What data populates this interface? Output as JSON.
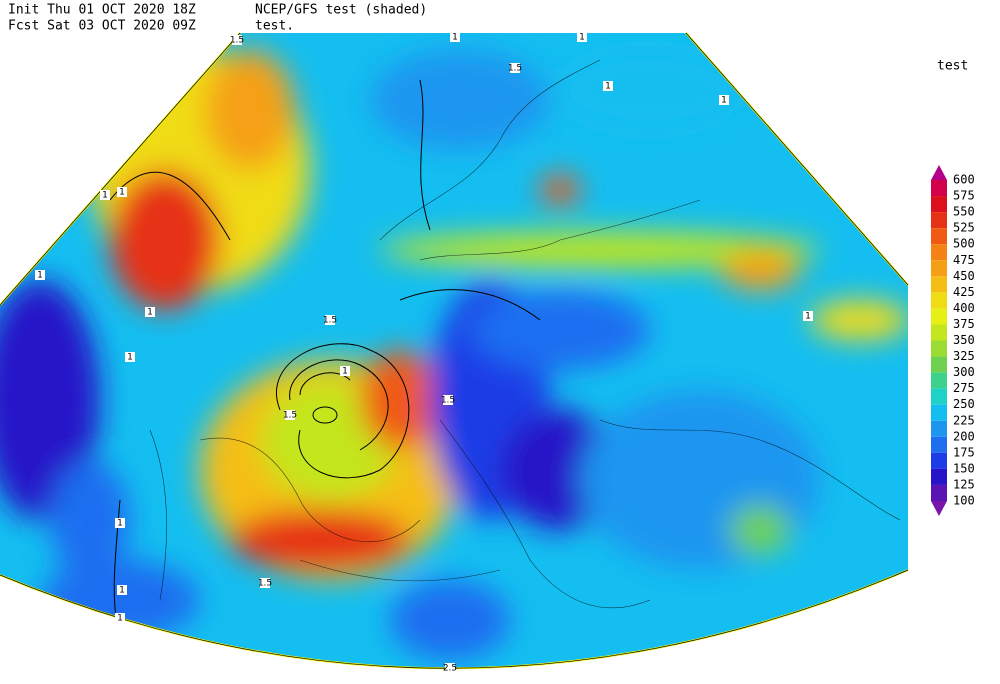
{
  "header": {
    "init": "Init  Thu 01 OCT 2020 18Z",
    "fcst": "Fcst Sat 03 OCT 2020 09Z",
    "product": "NCEP/GFS test (shaded)",
    "variable": "test."
  },
  "legend": {
    "title": "test",
    "levels": [
      600,
      575,
      550,
      525,
      500,
      475,
      450,
      425,
      400,
      375,
      350,
      325,
      300,
      275,
      250,
      225,
      200,
      175,
      150,
      125,
      100
    ],
    "colors": [
      "#b4008c",
      "#d2004b",
      "#dc0f1e",
      "#e63214",
      "#f05a14",
      "#f58214",
      "#f5a014",
      "#f5be14",
      "#f0dc14",
      "#e6f014",
      "#c3e61e",
      "#9bdc32",
      "#6ed250",
      "#3cd28c",
      "#1ed2c8",
      "#14bef0",
      "#1e96f0",
      "#1e6ef0",
      "#1e3ce6",
      "#2814c8",
      "#5a14b4",
      "#7814aa"
    ]
  },
  "contour_labels": [
    "1.5",
    "1",
    "1.5",
    "1",
    "1",
    "1",
    "1",
    "1",
    "1",
    "1",
    "1",
    "1.5",
    "1",
    "1.5",
    "1",
    "1",
    "1",
    "1.5",
    "1.5",
    "1",
    "2.5"
  ]
}
